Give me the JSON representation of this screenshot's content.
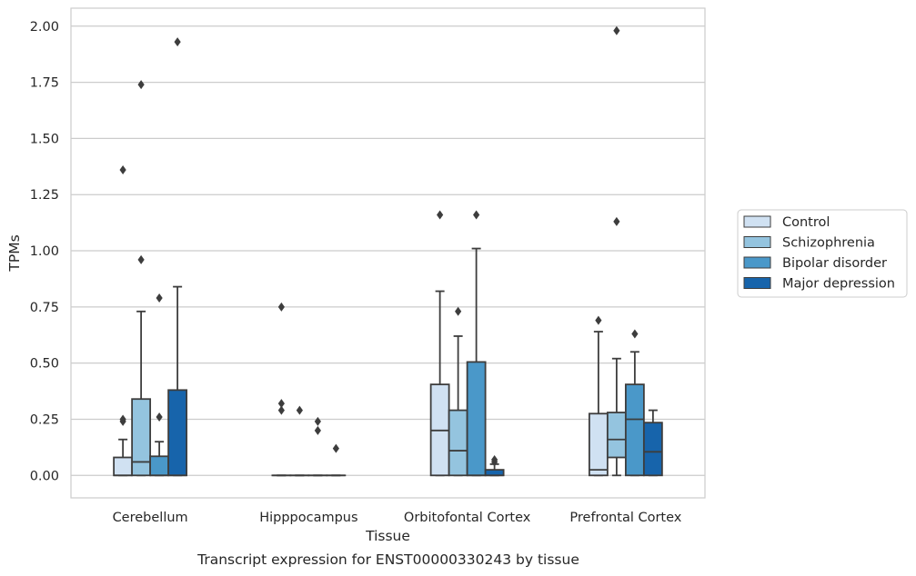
{
  "caption": "Transcript expression for ENST00000330243 by tissue",
  "chart_data": {
    "type": "box",
    "title": "",
    "xlabel": "Tissue",
    "ylabel": "TPMs",
    "categories": [
      "Cerebellum",
      "Hipppocampus",
      "Orbitofontal Cortex",
      "Prefrontal Cortex"
    ],
    "ylim": [
      -0.1,
      2.08
    ],
    "yticks": [
      0.0,
      0.25,
      0.5,
      0.75,
      1.0,
      1.25,
      1.5,
      1.75,
      2.0
    ],
    "ytick_labels": [
      "0.00",
      "0.25",
      "0.50",
      "0.75",
      "1.00",
      "1.25",
      "1.50",
      "1.75",
      "2.00"
    ],
    "grid": "horizontal",
    "legend_position": "right",
    "series": [
      {
        "name": "Control",
        "color": "#d0e1f2",
        "boxes": [
          {
            "whislo": 0.0,
            "q1": 0.0,
            "med": 0.0,
            "q3": 0.08,
            "whishi": 0.16,
            "fliers": [
              0.24,
              0.25,
              1.36
            ]
          },
          {
            "whislo": 0.0,
            "q1": 0.0,
            "med": 0.0,
            "q3": 0.0,
            "whishi": 0.0,
            "fliers": [
              0.29,
              0.32,
              0.75
            ]
          },
          {
            "whislo": 0.0,
            "q1": 0.0,
            "med": 0.2,
            "q3": 0.405,
            "whishi": 0.82,
            "fliers": [
              1.16
            ]
          },
          {
            "whislo": 0.0,
            "q1": 0.0,
            "med": 0.025,
            "q3": 0.275,
            "whishi": 0.64,
            "fliers": [
              0.69
            ]
          }
        ]
      },
      {
        "name": "Schizophrenia",
        "color": "#94c4df",
        "boxes": [
          {
            "whislo": 0.0,
            "q1": 0.0,
            "med": 0.06,
            "q3": 0.34,
            "whishi": 0.73,
            "fliers": [
              0.96,
              1.74
            ]
          },
          {
            "whislo": 0.0,
            "q1": 0.0,
            "med": 0.0,
            "q3": 0.0,
            "whishi": 0.0,
            "fliers": [
              0.29
            ]
          },
          {
            "whislo": 0.0,
            "q1": 0.0,
            "med": 0.11,
            "q3": 0.29,
            "whishi": 0.62,
            "fliers": [
              0.73
            ]
          },
          {
            "whislo": 0.0,
            "q1": 0.08,
            "med": 0.16,
            "q3": 0.28,
            "whishi": 0.52,
            "fliers": [
              1.13,
              1.98
            ]
          }
        ]
      },
      {
        "name": "Bipolar disorder",
        "color": "#4a98c9",
        "boxes": [
          {
            "whislo": 0.0,
            "q1": 0.0,
            "med": 0.0,
            "q3": 0.085,
            "whishi": 0.15,
            "fliers": [
              0.26,
              0.79
            ]
          },
          {
            "whislo": 0.0,
            "q1": 0.0,
            "med": 0.0,
            "q3": 0.0,
            "whishi": 0.0,
            "fliers": [
              0.2,
              0.24
            ]
          },
          {
            "whislo": 0.0,
            "q1": 0.0,
            "med": 0.0,
            "q3": 0.505,
            "whishi": 1.01,
            "fliers": [
              1.16
            ]
          },
          {
            "whislo": 0.0,
            "q1": 0.0,
            "med": 0.25,
            "q3": 0.405,
            "whishi": 0.55,
            "fliers": [
              0.63
            ]
          }
        ]
      },
      {
        "name": "Major depression",
        "color": "#1764ab",
        "boxes": [
          {
            "whislo": 0.0,
            "q1": 0.0,
            "med": 0.0,
            "q3": 0.38,
            "whishi": 0.84,
            "fliers": [
              1.93
            ]
          },
          {
            "whislo": 0.0,
            "q1": 0.0,
            "med": 0.0,
            "q3": 0.0,
            "whishi": 0.0,
            "fliers": [
              0.12
            ]
          },
          {
            "whislo": 0.0,
            "q1": 0.0,
            "med": 0.0,
            "q3": 0.025,
            "whishi": 0.05,
            "fliers": [
              0.06,
              0.07
            ]
          },
          {
            "whislo": 0.0,
            "q1": 0.0,
            "med": 0.105,
            "q3": 0.235,
            "whishi": 0.29,
            "fliers": []
          }
        ]
      }
    ]
  }
}
